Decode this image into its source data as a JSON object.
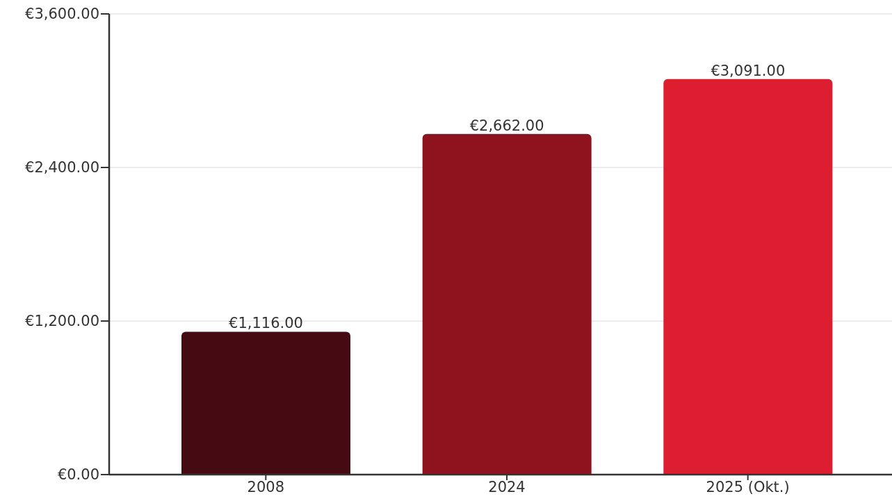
{
  "chart_data": {
    "type": "bar",
    "categories": [
      "2008",
      "2024",
      "2025 (Okt.)"
    ],
    "values": [
      1116,
      2662,
      3091
    ],
    "colors": [
      "#460a12",
      "#8e131f",
      "#dc1e30"
    ],
    "value_labels": [
      "€1,116.00",
      "€2,662.00",
      "€3,091.00"
    ],
    "ylim": [
      0,
      3600
    ],
    "yticks": [
      {
        "value": 0,
        "label": "€0.00"
      },
      {
        "value": 1200,
        "label": "€1,200.00"
      },
      {
        "value": 2400,
        "label": "€2,400.00"
      },
      {
        "value": 3600,
        "label": "€3,600.00"
      }
    ],
    "grid": "y"
  }
}
